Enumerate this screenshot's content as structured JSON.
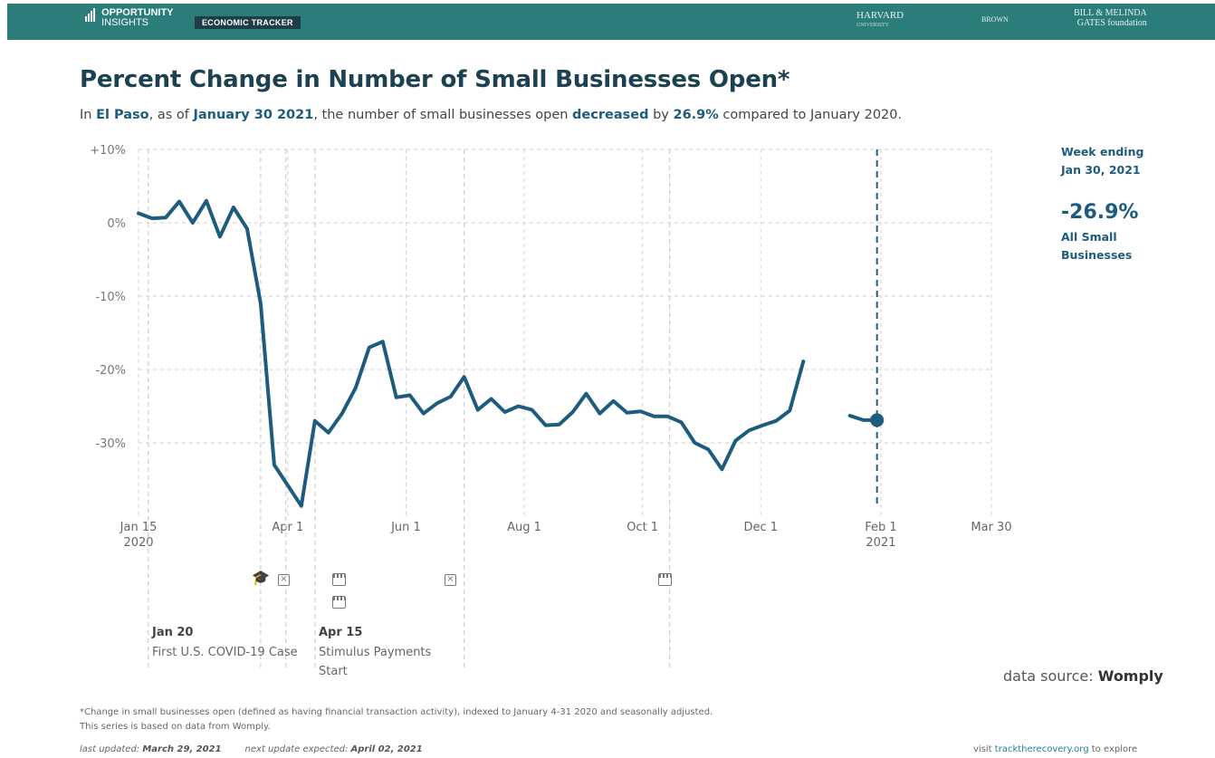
{
  "header": {
    "logo_line1": "OPPORTUNITY",
    "logo_line2": "INSIGHTS",
    "tracker": "ECONOMIC TRACKER",
    "partner1": "HARVARD",
    "partner1_sub": "UNIVERSITY",
    "partner2": "BROWN",
    "partner3_line1": "BILL & MELINDA",
    "partner3_line2": "GATES foundation"
  },
  "title": "Percent Change in Number of Small Businesses Open*",
  "subtitle": {
    "p1": "In ",
    "place": "El Paso",
    "p2": ", as of ",
    "date": "January 30 2021",
    "p3": ", the number of small businesses open ",
    "direction": "decreased",
    "p4": " by ",
    "pct": "26.9%",
    "p5": " compared to January 2020."
  },
  "side": {
    "week_line1": "Week ending",
    "week_line2": "Jan 30, 2021",
    "value": "-26.9%",
    "label_line1": "All Small",
    "label_line2": "Businesses"
  },
  "events": {
    "e1_date": "Jan 20",
    "e1_desc": "First U.S. COVID-19 Case",
    "e2_date": "Apr 15",
    "e2_desc_line1": "Stimulus Payments",
    "e2_desc_line2": "Start"
  },
  "source": {
    "label": "data source: ",
    "name": "Womply"
  },
  "footnote": "*Change in small businesses open (defined as having financial transaction activity), indexed to January 4-31 2020 and seasonally adjusted. This series is based on data from Womply.",
  "updated": {
    "label1": "last updated: ",
    "date1": "March 29, 2021",
    "label2": "next update expected: ",
    "date2": "April 02, 2021"
  },
  "visit": {
    "p1": "visit ",
    "link": "tracktherecovery.org",
    "p2": " to explore"
  },
  "colors": {
    "line": "#1d5c7e",
    "accent": "#2b7d7a",
    "grid": "#cccccc"
  },
  "chart_data": {
    "type": "line",
    "title": "Percent Change in Number of Small Businesses Open*",
    "y_unit": "%",
    "ylim": [
      -38,
      10
    ],
    "yticks": [
      {
        "value": 10,
        "label": "+10%"
      },
      {
        "value": 0,
        "label": "0%"
      },
      {
        "value": -10,
        "label": "-10%"
      },
      {
        "value": -20,
        "label": "-20%"
      },
      {
        "value": -30,
        "label": "-30%"
      }
    ],
    "xlim": [
      "2020-01-15",
      "2021-03-30"
    ],
    "xticks": [
      {
        "date": "2020-01-15",
        "label": "Jan 15",
        "label2": "2020"
      },
      {
        "date": "2020-04-01",
        "label": "Apr 1",
        "label2": ""
      },
      {
        "date": "2020-06-01",
        "label": "Jun 1",
        "label2": ""
      },
      {
        "date": "2020-08-01",
        "label": "Aug 1",
        "label2": ""
      },
      {
        "date": "2020-10-01",
        "label": "Oct 1",
        "label2": ""
      },
      {
        "date": "2020-12-01",
        "label": "Dec 1",
        "label2": ""
      },
      {
        "date": "2021-02-01",
        "label": "Feb 1",
        "label2": "2021"
      },
      {
        "date": "2021-03-30",
        "label": "Mar 30",
        "label2": ""
      }
    ],
    "grid": true,
    "series": [
      {
        "segments": [
          [
            [
              "2020-01-15",
              1.3
            ],
            [
              "2020-01-22",
              0.6
            ],
            [
              "2020-01-29",
              0.7
            ],
            [
              "2020-02-05",
              2.9
            ],
            [
              "2020-02-12",
              0.0
            ],
            [
              "2020-02-19",
              3.0
            ],
            [
              "2020-02-26",
              -1.9
            ],
            [
              "2020-03-04",
              2.1
            ],
            [
              "2020-03-11",
              -0.8
            ],
            [
              "2020-03-18",
              -11.0
            ],
            [
              "2020-03-25",
              -33.0
            ],
            [
              "2020-04-01",
              -35.8
            ],
            [
              "2020-04-08",
              -38.6
            ],
            [
              "2020-04-15",
              -27.0
            ],
            [
              "2020-04-22",
              -28.6
            ],
            [
              "2020-04-29",
              -26.0
            ],
            [
              "2020-05-06",
              -22.5
            ],
            [
              "2020-05-13",
              -17.0
            ],
            [
              "2020-05-20",
              -16.2
            ],
            [
              "2020-05-27",
              -23.8
            ],
            [
              "2020-06-03",
              -23.5
            ],
            [
              "2020-06-10",
              -26.0
            ],
            [
              "2020-06-17",
              -24.6
            ],
            [
              "2020-06-24",
              -23.7
            ],
            [
              "2020-07-01",
              -21.0
            ],
            [
              "2020-07-08",
              -25.5
            ],
            [
              "2020-07-15",
              -24.0
            ],
            [
              "2020-07-22",
              -25.8
            ],
            [
              "2020-07-29",
              -25.0
            ],
            [
              "2020-08-05",
              -25.5
            ],
            [
              "2020-08-12",
              -27.6
            ],
            [
              "2020-08-19",
              -27.5
            ],
            [
              "2020-08-26",
              -25.8
            ],
            [
              "2020-09-02",
              -23.3
            ],
            [
              "2020-09-09",
              -26.0
            ],
            [
              "2020-09-16",
              -24.3
            ],
            [
              "2020-09-23",
              -25.9
            ],
            [
              "2020-09-30",
              -25.7
            ],
            [
              "2020-10-07",
              -26.4
            ],
            [
              "2020-10-14",
              -26.4
            ],
            [
              "2020-10-21",
              -27.2
            ],
            [
              "2020-10-28",
              -30.0
            ],
            [
              "2020-11-04",
              -30.9
            ],
            [
              "2020-11-11",
              -33.6
            ],
            [
              "2020-11-18",
              -29.7
            ],
            [
              "2020-11-25",
              -28.3
            ],
            [
              "2020-12-02",
              -27.6
            ],
            [
              "2020-12-09",
              -27.0
            ],
            [
              "2020-12-16",
              -25.6
            ],
            [
              "2020-12-23",
              -18.9
            ]
          ],
          [
            [
              "2021-01-16",
              -26.3
            ],
            [
              "2021-01-23",
              -26.9
            ],
            [
              "2021-01-30",
              -26.9
            ]
          ]
        ],
        "last_point": [
          "2021-01-30",
          -26.9
        ]
      }
    ],
    "reference_lines": [
      {
        "date": "2020-01-20",
        "kind": "event"
      },
      {
        "date": "2020-03-18",
        "kind": "event"
      },
      {
        "date": "2020-03-31",
        "kind": "event"
      },
      {
        "date": "2020-04-15",
        "kind": "event"
      },
      {
        "date": "2020-07-01",
        "kind": "event"
      },
      {
        "date": "2020-10-15",
        "kind": "event"
      },
      {
        "date": "2021-01-30",
        "kind": "current"
      }
    ]
  }
}
